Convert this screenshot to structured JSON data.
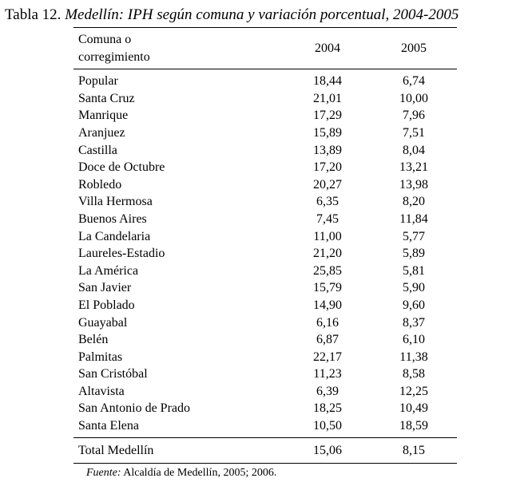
{
  "title": {
    "prefix": "Tabla 12. ",
    "main": "Medellín: IPH según comuna y variación porcentual, 2004-2005"
  },
  "table": {
    "columns": [
      {
        "key": "name",
        "label_line1": "Comuna o",
        "label_line2": "corregimiento"
      },
      {
        "key": "y2004",
        "label": "2004"
      },
      {
        "key": "y2005",
        "label": "2005"
      }
    ],
    "rows": [
      {
        "name": "Popular",
        "y2004": "18,44",
        "y2005": "6,74"
      },
      {
        "name": "Santa Cruz",
        "y2004": "21,01",
        "y2005": "10,00"
      },
      {
        "name": "Manrique",
        "y2004": "17,29",
        "y2005": "7,96"
      },
      {
        "name": "Aranjuez",
        "y2004": "15,89",
        "y2005": "7,51"
      },
      {
        "name": "Castilla",
        "y2004": "13,89",
        "y2005": "8,04"
      },
      {
        "name": "Doce de Octubre",
        "y2004": "17,20",
        "y2005": "13,21"
      },
      {
        "name": "Robledo",
        "y2004": "20,27",
        "y2005": "13,98"
      },
      {
        "name": "Villa Hermosa",
        "y2004": "6,35",
        "y2005": "8,20"
      },
      {
        "name": "Buenos Aires",
        "y2004": "7,45",
        "y2005": "11,84"
      },
      {
        "name": "La Candelaria",
        "y2004": "11,00",
        "y2005": "5,77"
      },
      {
        "name": "Laureles-Estadio",
        "y2004": "21,20",
        "y2005": "5,89"
      },
      {
        "name": "La América",
        "y2004": "25,85",
        "y2005": "5,81"
      },
      {
        "name": "San Javier",
        "y2004": "15,79",
        "y2005": "5,90"
      },
      {
        "name": "El Poblado",
        "y2004": "14,90",
        "y2005": "9,60"
      },
      {
        "name": "Guayabal",
        "y2004": "6,16",
        "y2005": "8,37"
      },
      {
        "name": "Belén",
        "y2004": "6,87",
        "y2005": "6,10"
      },
      {
        "name": "Palmitas",
        "y2004": "22,17",
        "y2005": "11,38"
      },
      {
        "name": "San Cristóbal",
        "y2004": "11,23",
        "y2005": "8,58"
      },
      {
        "name": "Altavista",
        "y2004": "6,39",
        "y2005": "12,25"
      },
      {
        "name": "San Antonio de Prado",
        "y2004": "18,25",
        "y2005": "10,49"
      },
      {
        "name": "Santa Elena",
        "y2004": "10,50",
        "y2005": "18,59"
      }
    ],
    "total": {
      "name": "Total Medellín",
      "y2004": "15,06",
      "y2005": "8,15"
    }
  },
  "source": {
    "label": "Fuente:",
    "text": " Alcaldía de Medellín, 2005; 2006."
  }
}
